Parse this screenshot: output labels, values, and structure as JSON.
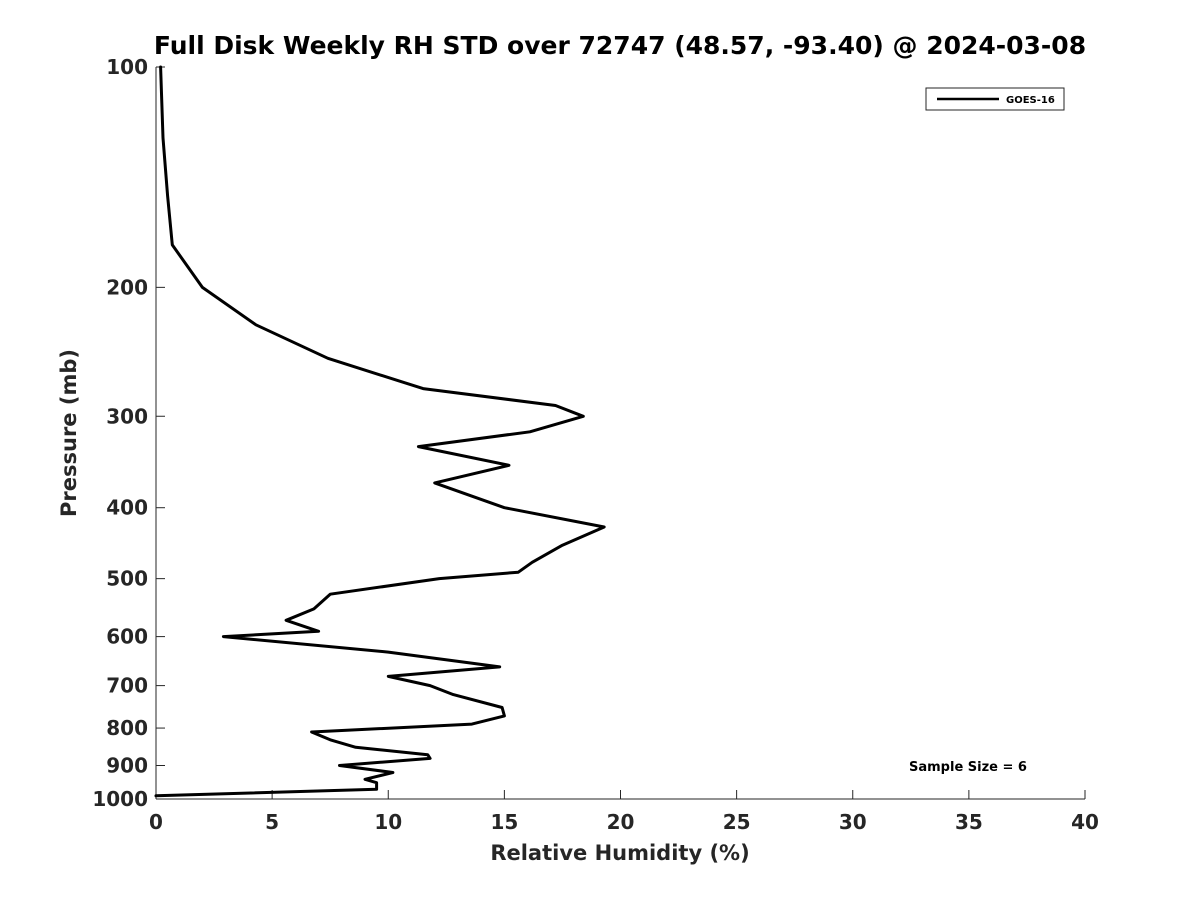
{
  "chart_data": {
    "type": "line",
    "title": "Full Disk Weekly RH STD over 72747 (48.57, -93.40) @ 2024-03-08",
    "xlabel": "Relative Humidity (%)",
    "ylabel": "Pressure (mb)",
    "xlim": [
      0,
      40
    ],
    "ylim": [
      100,
      1000
    ],
    "yscale": "log",
    "yreversed": true,
    "xticks": [
      0,
      5,
      10,
      15,
      20,
      25,
      30,
      35,
      40
    ],
    "xtick_labels": [
      "0",
      "5",
      "10",
      "15",
      "20",
      "25",
      "30",
      "35",
      "40"
    ],
    "yticks": [
      100,
      200,
      300,
      400,
      500,
      600,
      700,
      800,
      900,
      1000
    ],
    "ytick_labels": [
      "100",
      "200",
      "300",
      "400",
      "500",
      "600",
      "700",
      "800",
      "900",
      "1000"
    ],
    "legend": {
      "position": "top-right",
      "entries": [
        "GOES-16"
      ]
    },
    "annotation": "Sample Size = 6",
    "grid": false,
    "color": "#000000",
    "series": [
      {
        "name": "GOES-16",
        "rh": [
          0.2,
          0.3,
          0.5,
          0.7,
          2.0,
          4.3,
          7.4,
          11.5,
          17.2,
          18.4,
          16.1,
          11.3,
          15.2,
          12.0,
          15.0,
          19.3,
          17.5,
          16.2,
          15.6,
          12.2,
          7.5,
          6.8,
          5.6,
          7.0,
          2.9,
          10.0,
          14.8,
          10.0,
          11.8,
          12.8,
          14.9,
          15.0,
          13.6,
          6.7,
          7.5,
          8.6,
          11.7,
          11.8,
          7.9,
          10.2,
          9.0,
          9.5,
          9.5,
          0.0
        ],
        "pressure": [
          100,
          125,
          150,
          175,
          200,
          225,
          250,
          275,
          290,
          300,
          315,
          330,
          350,
          370,
          400,
          425,
          450,
          475,
          490,
          500,
          525,
          550,
          570,
          590,
          600,
          630,
          660,
          680,
          700,
          720,
          750,
          770,
          790,
          810,
          830,
          850,
          870,
          880,
          900,
          920,
          940,
          950,
          970,
          990
        ]
      }
    ]
  }
}
